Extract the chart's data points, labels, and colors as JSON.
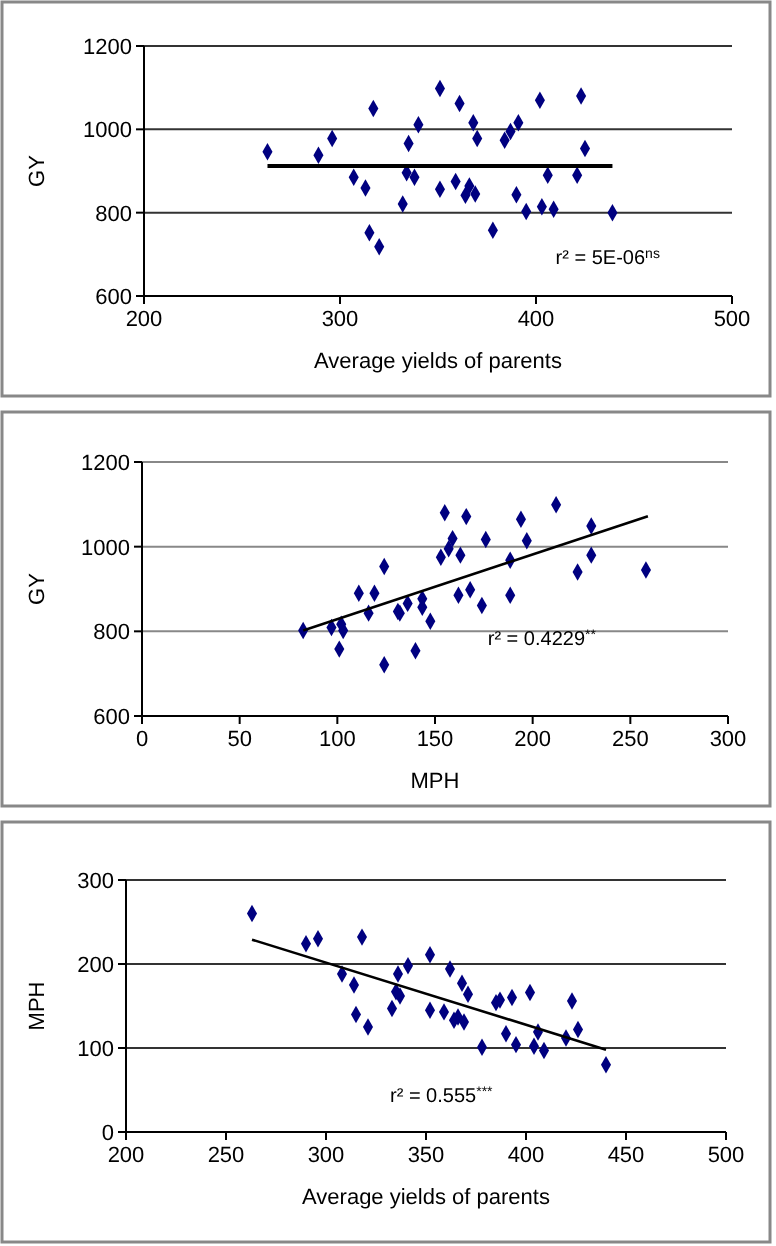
{
  "chart_data": [
    {
      "type": "scatter",
      "xlabel": "Average yields of parents",
      "ylabel": "GY",
      "xlim": [
        200,
        500
      ],
      "xticks": [
        200,
        300,
        400,
        500
      ],
      "ylim": [
        600,
        1200
      ],
      "yticks": [
        600,
        800,
        1000,
        1200
      ],
      "grid": "y",
      "annotations": [
        "r² = 5E-06$^{ns}$"
      ],
      "series": [
        {
          "color": "#000080",
          "marker": "diamond",
          "x": [
            263,
            289,
            296,
            307,
            313,
            315,
            317,
            320,
            332,
            334,
            335,
            338,
            340,
            351,
            351,
            359,
            361,
            364,
            366,
            368,
            369,
            370,
            378,
            384,
            387,
            390,
            391,
            395,
            402,
            403,
            406,
            409,
            421,
            423,
            425,
            439
          ],
          "values": [
            946,
            938,
            978,
            885,
            859,
            752,
            1050,
            718,
            821,
            896,
            966,
            885,
            1011,
            856,
            1098,
            875,
            1062,
            842,
            864,
            1016,
            845,
            978,
            758,
            974,
            995,
            843,
            1016,
            803,
            1070,
            814,
            890,
            808,
            890,
            1080,
            954,
            800
          ]
        },
        {
          "type": "line",
          "color": "#000000",
          "marker": "none",
          "x": [
            263,
            439
          ],
          "values": [
            912,
            912
          ]
        }
      ]
    },
    {
      "type": "scatter",
      "xlabel": "MPH",
      "ylabel": "GY",
      "xlim": [
        0,
        300
      ],
      "xticks": [
        0,
        50,
        100,
        150,
        200,
        250,
        300
      ],
      "ylim": [
        600,
        1200
      ],
      "yticks": [
        600,
        800,
        1000,
        1200
      ],
      "grid": "y",
      "annotations": [
        "r² = 0.4229$^{**}$"
      ],
      "series": [
        {
          "color": "#000080",
          "marker": "diamond",
          "x": [
            82.5,
            97,
            101,
            102,
            103,
            111,
            116,
            119,
            124,
            124,
            131,
            132,
            136,
            140,
            143.5,
            143.5,
            147.6,
            153,
            155,
            157,
            159,
            162,
            163,
            166,
            168,
            174,
            176,
            188.5,
            188.5,
            194,
            197,
            212,
            223,
            230,
            230,
            258
          ],
          "values": [
            802,
            809,
            758,
            817,
            802,
            890,
            843,
            890,
            953,
            721,
            847,
            843,
            866,
            754,
            877,
            857,
            824,
            975,
            1080,
            995,
            1019,
            885,
            980,
            1071,
            898,
            861,
            1017,
            968,
            885,
            1065,
            1014,
            1099,
            940,
            980,
            1049,
            945
          ]
        },
        {
          "type": "line",
          "color": "#000000",
          "marker": "none",
          "x": [
            82.5,
            259
          ],
          "values": [
            802,
            1072
          ]
        }
      ]
    },
    {
      "type": "scatter",
      "xlabel": "Average yields of parents",
      "ylabel": "MPH",
      "xlim": [
        200,
        500
      ],
      "xticks": [
        200,
        250,
        300,
        350,
        400,
        450,
        500
      ],
      "ylim": [
        0,
        300
      ],
      "yticks": [
        0,
        100,
        200,
        300
      ],
      "grid": "y",
      "annotations": [
        "r² = 0.555$^{***}$"
      ],
      "series": [
        {
          "color": "#000080",
          "marker": "diamond",
          "x": [
            263,
            290,
            296,
            308,
            314,
            315,
            318,
            321,
            333,
            335,
            336,
            337,
            341,
            352,
            352,
            359,
            362,
            364,
            366,
            368,
            369,
            371,
            378,
            385,
            387,
            390,
            393,
            395,
            402,
            404,
            406,
            409,
            420,
            423,
            426,
            440
          ],
          "values": [
            260,
            224,
            230,
            188,
            175,
            140,
            232,
            125,
            147,
            167,
            188,
            162,
            198,
            211,
            145,
            143,
            194,
            133,
            137,
            177,
            131,
            164,
            101,
            154,
            157,
            117,
            160,
            104,
            166,
            102,
            119,
            97,
            112,
            156,
            122,
            80
          ]
        },
        {
          "type": "line",
          "color": "#000000",
          "marker": "none",
          "x": [
            263,
            440
          ],
          "values": [
            229,
            98
          ]
        }
      ]
    }
  ]
}
